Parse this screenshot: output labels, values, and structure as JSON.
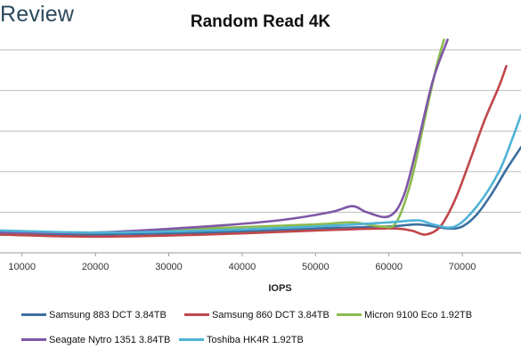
{
  "header": {
    "logo_text": "Review"
  },
  "chart_data": {
    "type": "line",
    "title": "Random Read 4K",
    "xlabel": "IOPS",
    "ylabel": "",
    "xlim": [
      7000,
      78000
    ],
    "ylim": [
      0,
      10
    ],
    "xticks": [
      10000,
      20000,
      30000,
      40000,
      50000,
      60000,
      70000
    ],
    "xtick_labels": [
      "10000",
      "20000",
      "30000",
      "40000",
      "50000",
      "60000",
      "70000"
    ],
    "grid": "horizontal",
    "legend_position": "bottom",
    "series": [
      {
        "name": "Samsung 883 DCT 3.84TB",
        "color": "#3c6fa0",
        "points": [
          [
            7000,
            0.9
          ],
          [
            20000,
            0.9
          ],
          [
            35000,
            1.0
          ],
          [
            50000,
            1.2
          ],
          [
            60000,
            1.3
          ],
          [
            64000,
            1.4
          ],
          [
            68000,
            1.2
          ],
          [
            70000,
            1.3
          ],
          [
            72000,
            1.9
          ],
          [
            74000,
            2.9
          ],
          [
            76000,
            4.1
          ],
          [
            78000,
            5.2
          ]
        ]
      },
      {
        "name": "Samsung 860 DCT 3.84TB",
        "color": "#c0474a",
        "points": [
          [
            7000,
            0.9
          ],
          [
            20000,
            0.8
          ],
          [
            35000,
            0.9
          ],
          [
            50000,
            1.1
          ],
          [
            60000,
            1.2
          ],
          [
            63000,
            1.1
          ],
          [
            65000,
            0.9
          ],
          [
            67000,
            1.3
          ],
          [
            69000,
            2.6
          ],
          [
            71000,
            4.5
          ],
          [
            73000,
            6.5
          ],
          [
            75000,
            8.2
          ],
          [
            76000,
            9.2
          ]
        ]
      },
      {
        "name": "Micron 9100 Eco 1.92TB",
        "color": "#8cba4e",
        "points": [
          [
            7000,
            1.0
          ],
          [
            20000,
            1.0
          ],
          [
            35000,
            1.2
          ],
          [
            50000,
            1.4
          ],
          [
            55000,
            1.5
          ],
          [
            59000,
            1.3
          ],
          [
            61000,
            1.5
          ],
          [
            63000,
            3.5
          ],
          [
            65000,
            6.8
          ],
          [
            66500,
            9.2
          ],
          [
            67500,
            10.5
          ]
        ]
      },
      {
        "name": "Seagate Nytro 1351 3.84TB",
        "color": "#7e57a6",
        "points": [
          [
            7000,
            1.0
          ],
          [
            20000,
            1.0
          ],
          [
            35000,
            1.3
          ],
          [
            45000,
            1.6
          ],
          [
            52000,
            2.0
          ],
          [
            55000,
            2.3
          ],
          [
            57000,
            2.0
          ],
          [
            60000,
            1.8
          ],
          [
            62000,
            2.8
          ],
          [
            64000,
            5.5
          ],
          [
            66000,
            8.5
          ],
          [
            68000,
            10.5
          ]
        ]
      },
      {
        "name": "Toshiba HK4R 1.92TB",
        "color": "#4fb3d6",
        "points": [
          [
            7000,
            1.1
          ],
          [
            20000,
            1.0
          ],
          [
            35000,
            1.1
          ],
          [
            50000,
            1.3
          ],
          [
            60000,
            1.5
          ],
          [
            64000,
            1.6
          ],
          [
            66000,
            1.4
          ],
          [
            69000,
            1.3
          ],
          [
            72000,
            2.3
          ],
          [
            75000,
            4.0
          ],
          [
            77000,
            5.8
          ],
          [
            78000,
            6.8
          ]
        ]
      }
    ]
  }
}
